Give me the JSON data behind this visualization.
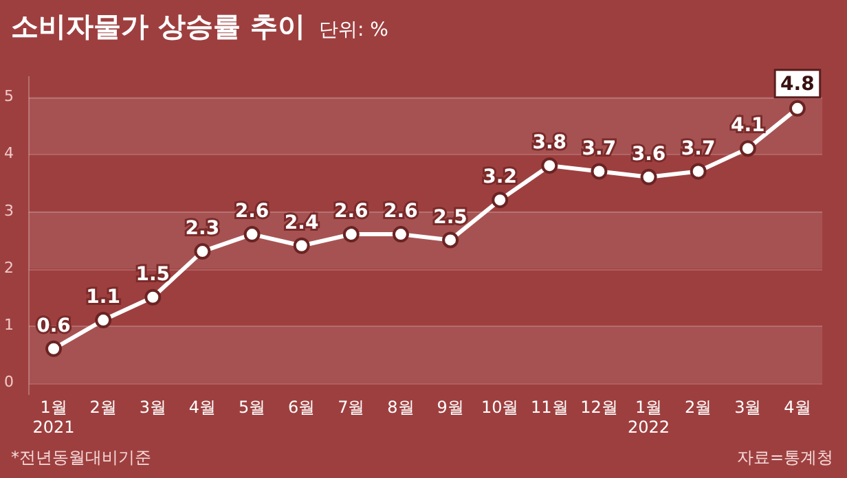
{
  "chart_data": {
    "type": "line",
    "title": "소비자물가 상승률 추이",
    "subtitle": "단위: %",
    "categories": [
      "1월\n2021",
      "2월",
      "3월",
      "4월",
      "5월",
      "6월",
      "7월",
      "8월",
      "9월",
      "10월",
      "11월",
      "12월",
      "1월\n2022",
      "2월",
      "3월",
      "4월"
    ],
    "series": [
      {
        "color": "#ffffff",
        "values": [
          0.6,
          1.1,
          1.5,
          2.3,
          2.6,
          2.4,
          2.6,
          2.6,
          2.5,
          3.2,
          3.8,
          3.7,
          3.6,
          3.7,
          4.1,
          4.8
        ]
      }
    ],
    "ylim": [
      -0.2,
      5.35
    ],
    "yticks": [
      0,
      1,
      2,
      3,
      4,
      5
    ],
    "grid": "y",
    "marker": "circle",
    "line_style": "solid",
    "data_labels": true,
    "annotations": [
      "*전년동월대비기준",
      "자료=통계청"
    ]
  }
}
